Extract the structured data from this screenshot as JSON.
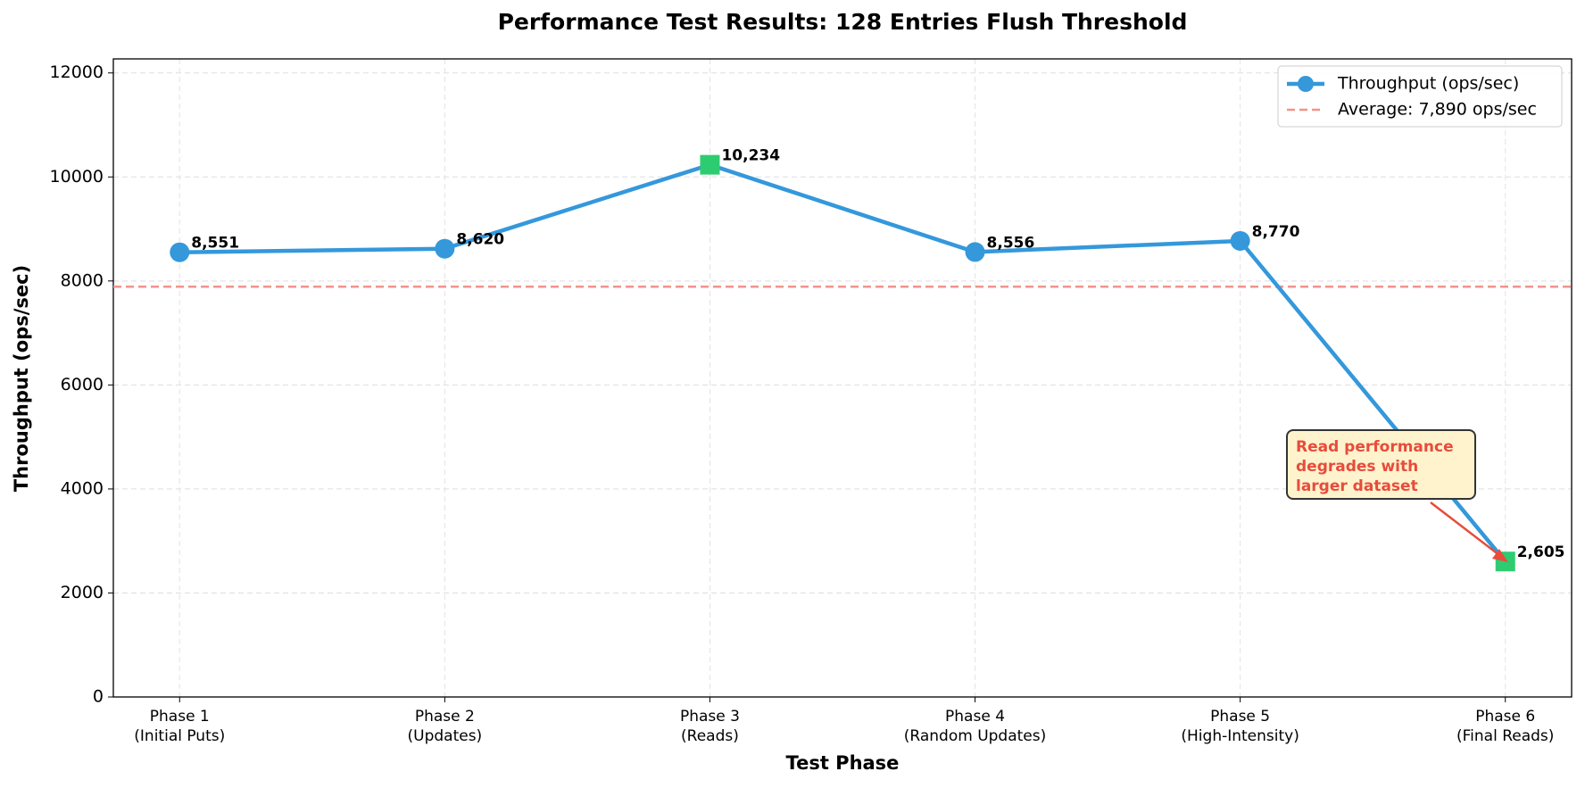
{
  "chart_data": {
    "type": "line",
    "title": "Performance Test Results: 128 Entries Flush Threshold",
    "xlabel": "Test Phase",
    "ylabel": "Throughput (ops/sec)",
    "categories": [
      "Phase 1\n(Initial Puts)",
      "Phase 2\n(Updates)",
      "Phase 3\n(Reads)",
      "Phase 4\n(Random Updates)",
      "Phase 5\n(High-Intensity)",
      "Phase 6\n(Final Reads)"
    ],
    "series": [
      {
        "name": "Throughput (ops/sec)",
        "color": "#3498db",
        "values": [
          8551,
          8620,
          10234,
          8556,
          8770,
          2605
        ],
        "value_labels": [
          "8,551",
          "8,620",
          "10,234",
          "8,556",
          "8,770",
          "2,605"
        ],
        "markers": [
          "circle",
          "circle",
          "square",
          "circle",
          "circle",
          "square"
        ],
        "marker_colors": [
          "#3498db",
          "#3498db",
          "#2ecc71",
          "#3498db",
          "#3498db",
          "#2ecc71"
        ]
      }
    ],
    "reference_line": {
      "value": 7890,
      "label": "Average: 7,890 ops/sec",
      "color": "#f1948a"
    },
    "annotation": {
      "text": "Read performance\ndegrades with\nlarger dataset",
      "color": "#e74c3c"
    },
    "ylim": [
      0,
      12270
    ],
    "yticks": [
      0,
      2000,
      4000,
      6000,
      8000,
      10000,
      12000
    ],
    "grid": true,
    "legend": "upper right"
  }
}
